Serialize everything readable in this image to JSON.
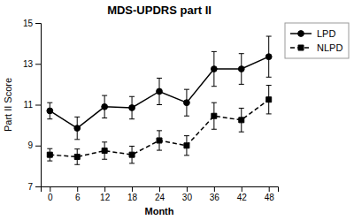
{
  "chart_data": {
    "type": "line",
    "title": "MDS-UPDRS part II",
    "xlabel": "Month",
    "ylabel": "Part II Score",
    "x": [
      0,
      6,
      12,
      18,
      24,
      30,
      36,
      42,
      48
    ],
    "series": [
      {
        "name": "LPD",
        "color": "#000000",
        "marker": "circle",
        "line_style": "solid",
        "values": [
          10.7,
          9.85,
          10.9,
          10.85,
          11.65,
          11.1,
          12.75,
          12.75,
          13.35
        ],
        "errors": [
          0.4,
          0.55,
          0.55,
          0.55,
          0.65,
          0.65,
          0.85,
          0.75,
          1.0
        ]
      },
      {
        "name": "NLPD",
        "color": "#000000",
        "marker": "square",
        "line_style": "dashed",
        "values": [
          8.55,
          8.45,
          8.75,
          8.55,
          9.25,
          9.0,
          10.45,
          10.25,
          11.25
        ],
        "errors": [
          0.3,
          0.38,
          0.42,
          0.42,
          0.48,
          0.48,
          0.65,
          0.58,
          0.7
        ]
      }
    ],
    "xlim": [
      -2,
      50
    ],
    "xticks": [
      0,
      6,
      12,
      18,
      24,
      30,
      36,
      42,
      48
    ],
    "ylim": [
      7,
      15
    ],
    "yticks": [
      7,
      9,
      11,
      13,
      15
    ],
    "grid": false,
    "legend": "upper right"
  }
}
